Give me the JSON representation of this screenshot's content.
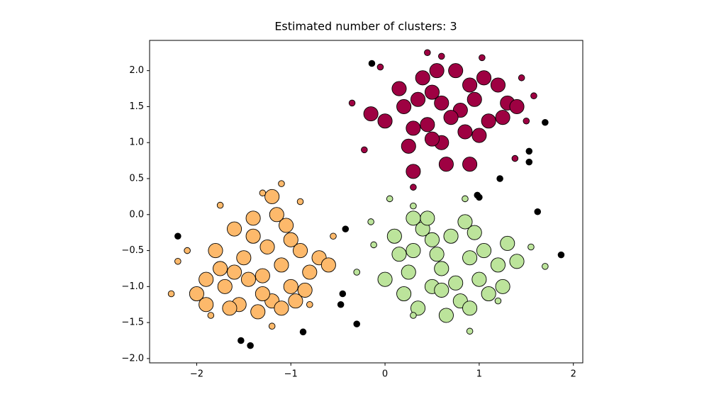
{
  "chart_data": {
    "type": "scatter",
    "title": "Estimated number of clusters: 3",
    "xlim": [
      -2.5,
      2.1
    ],
    "ylim": [
      -2.06,
      2.42
    ],
    "xticks": [
      {
        "value": -2,
        "label": "−2"
      },
      {
        "value": -1,
        "label": "−1"
      },
      0,
      1,
      2
    ],
    "yticks": [
      {
        "value": -2,
        "label": "−2.0"
      },
      {
        "value": -1.5,
        "label": "−1.5"
      },
      {
        "value": -1,
        "label": "−1.0"
      },
      {
        "value": -0.5,
        "label": "−0.5"
      },
      {
        "value": 0,
        "label": "0.0"
      },
      {
        "value": 0.5,
        "label": "0.5"
      },
      {
        "value": 1,
        "label": "1.0"
      },
      {
        "value": 1.5,
        "label": "1.5"
      },
      {
        "value": 2,
        "label": "2.0"
      }
    ],
    "grid": false,
    "edgecolor": "#000000",
    "series": [
      {
        "color": "#fdb96b",
        "x": [
          -1.3,
          -1.5,
          -1.1,
          -1.7,
          -1.9,
          -0.9,
          -1.2,
          -1.4,
          -1.6,
          -1.0,
          -0.8,
          -1.8,
          -1.25,
          -1.55,
          -1.05,
          -0.7,
          -2.0,
          -1.35,
          -1.65,
          -0.95,
          -1.15,
          -1.45,
          -1.75,
          -0.85,
          -1.2,
          -1.6,
          -0.6,
          -1.1,
          -1.4,
          -1.9,
          -1.3,
          -1.0,
          -2.27,
          -2.1,
          -1.1,
          -0.55,
          -1.85,
          -1.75,
          -0.9,
          -0.8,
          -1.2,
          -2.2,
          -1.3
        ],
        "y": [
          -0.85,
          -0.6,
          -0.7,
          -1.0,
          -0.9,
          -0.5,
          -1.2,
          -0.3,
          -0.2,
          -1.0,
          -0.8,
          -0.5,
          -0.45,
          -1.25,
          -0.15,
          -0.6,
          -1.1,
          -1.35,
          -1.3,
          -1.2,
          0.0,
          -0.9,
          -0.75,
          -1.05,
          0.25,
          -0.8,
          -0.7,
          -1.3,
          -0.05,
          -1.25,
          -1.1,
          -0.35,
          -1.1,
          -0.5,
          0.43,
          -0.3,
          -1.4,
          0.13,
          0.18,
          -1.25,
          -1.55,
          -0.65,
          0.3
        ],
        "sizes": [
          14,
          14,
          14,
          14,
          14,
          14,
          14,
          14,
          14,
          14,
          14,
          14,
          14,
          14,
          14,
          14,
          14,
          14,
          14,
          14,
          14,
          14,
          14,
          14,
          14,
          14,
          14,
          14,
          14,
          14,
          14,
          14,
          6,
          6,
          6,
          6,
          6,
          6,
          6,
          6,
          6,
          6,
          6
        ]
      },
      {
        "color": "#bce49b",
        "x": [
          0.6,
          0.3,
          0.9,
          0.1,
          1.2,
          0.5,
          0.7,
          0.2,
          1.0,
          0.4,
          0.8,
          1.3,
          0.0,
          0.55,
          0.95,
          0.25,
          1.1,
          0.65,
          0.35,
          0.75,
          1.4,
          0.15,
          0.85,
          0.45,
          1.05,
          0.6,
          0.3,
          0.9,
          1.25,
          0.5,
          0.05,
          0.3,
          -0.15,
          -0.12,
          0.9,
          1.2,
          1.7,
          -0.3,
          0.85,
          1.55,
          0.3
        ],
        "y": [
          -0.75,
          -0.5,
          -0.6,
          -0.3,
          -0.7,
          -1.0,
          -0.3,
          -1.1,
          -0.9,
          -0.2,
          -1.2,
          -0.4,
          -0.9,
          -0.55,
          -0.25,
          -0.8,
          -1.1,
          -1.4,
          -1.3,
          -0.95,
          -0.65,
          -0.55,
          -0.1,
          -0.05,
          -0.5,
          -1.05,
          -0.05,
          -1.3,
          -1.0,
          -0.35,
          0.22,
          0.12,
          -0.1,
          -0.42,
          -1.62,
          -1.2,
          -0.72,
          -0.8,
          0.22,
          -0.45,
          -1.4
        ],
        "sizes": [
          14,
          14,
          14,
          14,
          14,
          14,
          14,
          14,
          14,
          14,
          14,
          14,
          14,
          14,
          14,
          14,
          14,
          14,
          14,
          14,
          14,
          14,
          14,
          14,
          14,
          14,
          14,
          14,
          14,
          14,
          6,
          6,
          6,
          6,
          6,
          6,
          6,
          6,
          6,
          6,
          6
        ]
      },
      {
        "color": "#9e0142",
        "x": [
          0.8,
          0.5,
          1.1,
          0.3,
          1.3,
          0.6,
          0.9,
          0.2,
          1.0,
          0.4,
          0.7,
          1.2,
          0.0,
          0.55,
          0.95,
          0.25,
          1.4,
          0.65,
          0.35,
          0.75,
          -0.15,
          0.15,
          0.85,
          0.45,
          1.05,
          0.6,
          0.3,
          0.9,
          1.25,
          0.5,
          0.45,
          0.6,
          1.03,
          -0.05,
          1.45,
          1.58,
          1.5,
          -0.22,
          1.38,
          -0.35,
          0.3
        ],
        "y": [
          1.45,
          1.7,
          1.3,
          1.2,
          1.55,
          1.0,
          1.8,
          1.5,
          1.1,
          1.9,
          1.35,
          1.8,
          1.3,
          2.0,
          1.6,
          0.95,
          1.5,
          0.7,
          1.6,
          2.0,
          1.4,
          1.75,
          1.15,
          1.25,
          1.9,
          1.55,
          0.6,
          0.7,
          1.35,
          1.05,
          2.25,
          2.2,
          2.18,
          2.05,
          1.9,
          1.65,
          1.3,
          0.9,
          0.78,
          1.55,
          0.38
        ],
        "sizes": [
          14,
          14,
          14,
          14,
          14,
          14,
          14,
          14,
          14,
          14,
          14,
          14,
          14,
          14,
          14,
          14,
          14,
          14,
          14,
          14,
          14,
          14,
          14,
          14,
          14,
          14,
          14,
          14,
          14,
          14,
          6,
          6,
          6,
          6,
          6,
          6,
          6,
          6,
          6,
          6,
          6
        ]
      },
      {
        "color": "#000000",
        "x": [
          -2.2,
          -0.42,
          -0.45,
          -0.47,
          -0.3,
          -0.87,
          -1.53,
          -1.43,
          -0.14,
          1.7,
          1.53,
          1.53,
          1.22,
          0.98,
          1.0,
          1.62,
          1.87
        ],
        "y": [
          -0.3,
          -0.2,
          -1.1,
          -1.25,
          -1.52,
          -1.63,
          -1.75,
          -1.82,
          2.1,
          1.28,
          0.88,
          0.73,
          0.5,
          0.27,
          0.24,
          0.04,
          -0.56
        ],
        "sizes": [
          6,
          6,
          6,
          6,
          6,
          6,
          6,
          6,
          6,
          6,
          6,
          6,
          6,
          6,
          6,
          6,
          6
        ]
      }
    ]
  }
}
